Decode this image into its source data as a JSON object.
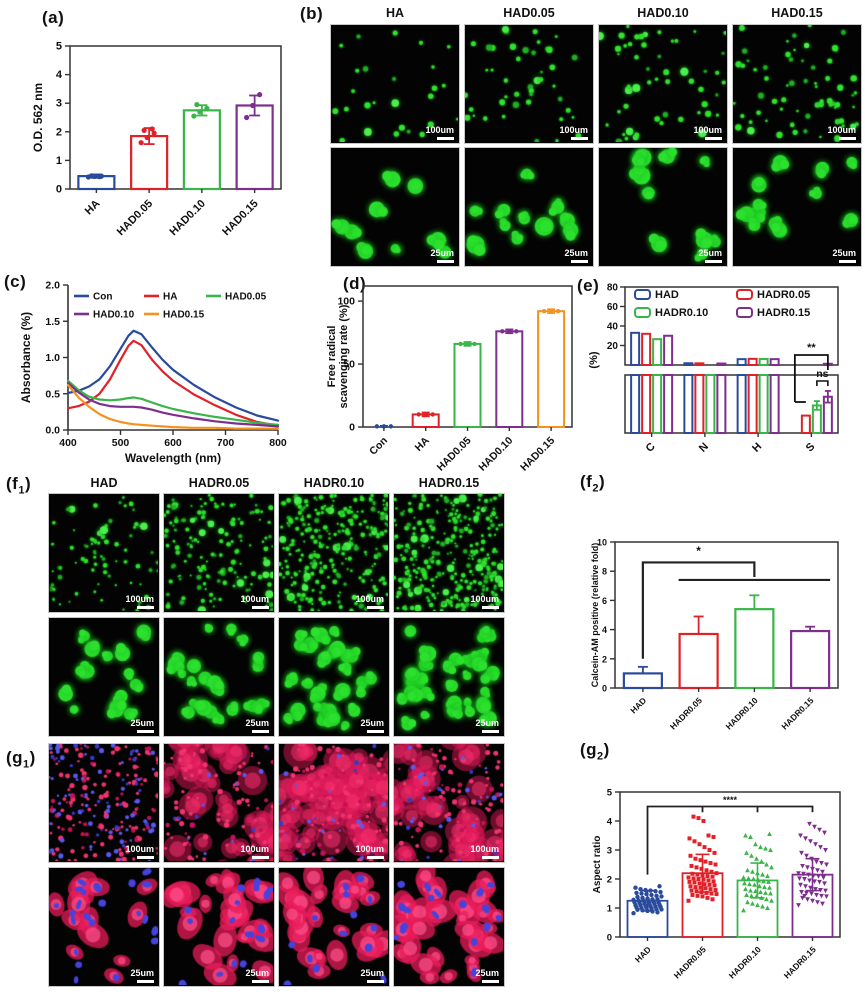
{
  "panels": {
    "a": {
      "label": "(a)"
    },
    "b": {
      "label": "(b)"
    },
    "c": {
      "label": "(c)"
    },
    "d": {
      "label": "(d)"
    },
    "e": {
      "label": "(e)"
    },
    "f1": {
      "prefix": "(f",
      "sub": "1",
      "suffix": ")"
    },
    "f2": {
      "prefix": "(f",
      "sub": "2",
      "suffix": ")"
    },
    "g1": {
      "prefix": "(g",
      "sub": "1",
      "suffix": ")"
    },
    "g2": {
      "prefix": "(g",
      "sub": "2",
      "suffix": ")"
    }
  },
  "colors": {
    "blue": "#2a4b9c",
    "red": "#e02228",
    "green": "#3ab54a",
    "purple": "#7e2f8e",
    "orange": "#f5921f",
    "micro_green": "#2ee32e",
    "micro_red": "#e8356f",
    "micro_blue": "#4746e0"
  },
  "chart_data": [
    {
      "panel": "a",
      "type": "bar",
      "categories": [
        "HA",
        "HAD0.05",
        "HAD0.10",
        "HAD0.15"
      ],
      "values": [
        0.45,
        1.85,
        2.75,
        2.92
      ],
      "errors": [
        0.06,
        0.28,
        0.18,
        0.35
      ],
      "points": [
        [
          0.42,
          0.44,
          0.45,
          0.46,
          0.43
        ],
        [
          1.62,
          1.8,
          1.95,
          2.05,
          2.1
        ],
        [
          2.55,
          2.7,
          2.82,
          2.95
        ],
        [
          2.5,
          2.92,
          3.3
        ]
      ],
      "bar_colors": [
        "#2a4b9c",
        "#e02228",
        "#3ab54a",
        "#7e2f8e"
      ],
      "ylabel": "O.D. 562 nm",
      "ylim": [
        0,
        5
      ],
      "yticks": [
        0,
        1,
        2,
        3,
        4,
        5
      ]
    },
    {
      "panel": "c",
      "type": "line",
      "title": "",
      "xlabel": "Wavelength (nm)",
      "ylabel": "Absorbance (%)",
      "xlim": [
        400,
        800
      ],
      "ylim": [
        0,
        2
      ],
      "xticks": [
        400,
        500,
        600,
        700,
        800
      ],
      "yticks": [
        "0.0",
        "0.5",
        "1.0",
        "1.5",
        "2.0"
      ],
      "x": [
        400,
        420,
        440,
        460,
        480,
        500,
        515,
        525,
        540,
        560,
        580,
        600,
        640,
        680,
        720,
        760,
        800
      ],
      "series": [
        {
          "name": "Con",
          "color": "#2a4b9c",
          "y": [
            0.51,
            0.54,
            0.6,
            0.7,
            0.88,
            1.12,
            1.3,
            1.37,
            1.32,
            1.14,
            0.97,
            0.83,
            0.62,
            0.45,
            0.31,
            0.2,
            0.13
          ]
        },
        {
          "name": "HA",
          "color": "#e02228",
          "y": [
            0.3,
            0.33,
            0.39,
            0.5,
            0.7,
            0.97,
            1.16,
            1.23,
            1.17,
            0.97,
            0.81,
            0.68,
            0.49,
            0.34,
            0.21,
            0.11,
            0.06
          ]
        },
        {
          "name": "HAD0.05",
          "color": "#3ab54a",
          "y": [
            0.68,
            0.55,
            0.46,
            0.42,
            0.41,
            0.42,
            0.44,
            0.45,
            0.43,
            0.38,
            0.33,
            0.29,
            0.23,
            0.18,
            0.14,
            0.1,
            0.07
          ]
        },
        {
          "name": "HAD0.10",
          "color": "#7e2f8e",
          "y": [
            0.65,
            0.52,
            0.42,
            0.36,
            0.33,
            0.32,
            0.32,
            0.32,
            0.31,
            0.28,
            0.24,
            0.21,
            0.16,
            0.12,
            0.09,
            0.07,
            0.05
          ]
        },
        {
          "name": "HAD0.15",
          "color": "#f5921f",
          "y": [
            0.62,
            0.45,
            0.32,
            0.22,
            0.15,
            0.11,
            0.09,
            0.08,
            0.07,
            0.06,
            0.05,
            0.04,
            0.03,
            0.03,
            0.02,
            0.02,
            0.02
          ]
        }
      ],
      "legend_rows": [
        [
          "Con",
          "HA",
          "HAD0.05"
        ],
        [
          "HAD0.10",
          "HAD0.15"
        ]
      ],
      "legend_position": "top-left-inside",
      "grid": false
    },
    {
      "panel": "d",
      "type": "bar",
      "categories": [
        "Con",
        "HA",
        "HAD0.05",
        "HAD0.10",
        "HAD0.15"
      ],
      "values": [
        0.5,
        10,
        66,
        76,
        92
      ],
      "errors": [
        0.4,
        1.5,
        1.5,
        1.5,
        1.5
      ],
      "bar_colors": [
        "#2a4b9c",
        "#e02228",
        "#3ab54a",
        "#7e2f8e",
        "#f5921f"
      ],
      "ylabel_lines": [
        "Free radical",
        "scavenging rate (%)"
      ],
      "ylim": [
        0,
        112
      ],
      "yticks": [
        0,
        50,
        100
      ]
    },
    {
      "panel": "e",
      "type": "grouped-bar-broken-axis",
      "categories": [
        "C",
        "N",
        "H",
        "S"
      ],
      "series": [
        {
          "name": "HAD",
          "color": "#2a4b9c",
          "values": [
            33,
            1.8,
            6.0,
            0
          ]
        },
        {
          "name": "HADR0.05",
          "color": "#e02228",
          "values": [
            32,
            1.7,
            6.3,
            0.6
          ]
        },
        {
          "name": "HADR0.10",
          "color": "#3ab54a",
          "values": [
            26.5,
            0.9,
            6.2,
            0.95
          ]
        },
        {
          "name": "HADR0.15",
          "color": "#7e2f8e",
          "values": [
            30,
            1.5,
            6.0,
            1.25
          ]
        }
      ],
      "s_errors": [
        0,
        0.05,
        0.15,
        0.2
      ],
      "ylabel": "(%)",
      "upper_ylim": [
        0,
        80
      ],
      "upper_yticks": [
        20,
        40,
        60,
        80
      ],
      "lower_ylim": [
        0,
        2
      ],
      "annotations": [
        "**",
        "ns"
      ],
      "legend_position": "top-inside"
    },
    {
      "panel": "f2",
      "type": "bar",
      "categories": [
        "HAD",
        "HADR0.05",
        "HADR0.10",
        "HADR0.15"
      ],
      "values": [
        1.0,
        3.7,
        5.4,
        3.9
      ],
      "errors": [
        0.45,
        1.2,
        0.95,
        0.3
      ],
      "bar_colors": [
        "#2a4b9c",
        "#e02228",
        "#3ab54a",
        "#7e2f8e"
      ],
      "ylabel": "Calcein-AM positive (relative fold)",
      "ylim": [
        0,
        10
      ],
      "yticks": [
        0,
        2,
        4,
        6,
        8,
        10
      ],
      "significance": "*"
    },
    {
      "panel": "g2",
      "type": "scatter-bar",
      "categories": [
        "HAD",
        "HADR0.05",
        "HADR0.10",
        "HADR0.15"
      ],
      "means": [
        1.25,
        2.2,
        1.95,
        2.15
      ],
      "errors": [
        0.35,
        0.65,
        0.6,
        0.55
      ],
      "markers": [
        "circle",
        "square",
        "triangle-up",
        "triangle-down"
      ],
      "colors": [
        "#2a4b9c",
        "#e02228",
        "#3ab54a",
        "#7e2f8e"
      ],
      "points": [
        [
          0.82,
          0.85,
          0.88,
          0.9,
          0.92,
          0.94,
          0.95,
          0.96,
          0.98,
          1.0,
          1.0,
          1.02,
          1.04,
          1.05,
          1.06,
          1.08,
          1.1,
          1.1,
          1.12,
          1.14,
          1.15,
          1.16,
          1.18,
          1.2,
          1.2,
          1.22,
          1.24,
          1.25,
          1.26,
          1.28,
          1.3,
          1.3,
          1.32,
          1.35,
          1.38,
          1.4,
          1.42,
          1.45,
          1.48,
          1.5,
          1.52,
          1.55,
          1.58,
          1.6,
          1.62,
          1.65,
          1.7,
          1.75
        ],
        [
          1.25,
          1.3,
          1.35,
          1.4,
          1.42,
          1.45,
          1.48,
          1.5,
          1.52,
          1.55,
          1.58,
          1.6,
          1.62,
          1.65,
          1.68,
          1.7,
          1.72,
          1.75,
          1.78,
          1.8,
          1.82,
          1.85,
          1.88,
          1.9,
          1.92,
          1.95,
          1.98,
          2.0,
          2.02,
          2.05,
          2.08,
          2.1,
          2.12,
          2.15,
          2.18,
          2.2,
          2.25,
          2.3,
          2.35,
          2.4,
          2.45,
          2.5,
          2.55,
          2.6,
          2.65,
          2.7,
          2.8,
          2.9,
          3.0,
          3.1,
          3.2,
          3.3,
          3.4,
          3.45,
          3.5,
          4.0,
          4.1,
          4.15
        ],
        [
          0.92,
          1.0,
          1.05,
          1.1,
          1.15,
          1.2,
          1.25,
          1.3,
          1.35,
          1.4,
          1.42,
          1.45,
          1.5,
          1.52,
          1.55,
          1.58,
          1.6,
          1.65,
          1.7,
          1.72,
          1.75,
          1.8,
          1.82,
          1.85,
          1.9,
          1.92,
          1.95,
          2.0,
          2.02,
          2.05,
          2.1,
          2.15,
          2.2,
          2.25,
          2.3,
          2.4,
          2.5,
          2.6,
          2.7,
          2.8,
          2.9,
          3.0,
          3.05,
          3.1,
          3.2,
          3.45,
          3.5,
          3.55
        ],
        [
          1.1,
          1.15,
          1.2,
          1.25,
          1.3,
          1.35,
          1.4,
          1.42,
          1.45,
          1.5,
          1.52,
          1.55,
          1.6,
          1.62,
          1.65,
          1.7,
          1.75,
          1.8,
          1.85,
          1.9,
          1.92,
          1.95,
          2.0,
          2.02,
          2.05,
          2.1,
          2.12,
          2.15,
          2.18,
          2.2,
          2.25,
          2.3,
          2.35,
          2.4,
          2.45,
          2.5,
          2.55,
          2.6,
          2.7,
          2.8,
          2.9,
          3.0,
          3.1,
          3.2,
          3.3,
          3.4,
          3.5,
          3.6,
          3.7,
          3.8,
          3.9,
          1.42
        ]
      ],
      "ylabel": "Aspect ratio",
      "ylim": [
        0,
        5
      ],
      "yticks": [
        0,
        1,
        2,
        3,
        4,
        5
      ],
      "significance": "****"
    }
  ],
  "microscopy": {
    "b": {
      "columns": [
        "HA",
        "HAD0.05",
        "HAD0.10",
        "HAD0.15"
      ],
      "rows": [
        {
          "scale": "100um",
          "style": "green-dots",
          "counts": [
            26,
            46,
            52,
            64
          ]
        },
        {
          "scale": "25um",
          "style": "green-blobs",
          "counts": [
            9,
            12,
            10,
            12
          ]
        }
      ]
    },
    "f1": {
      "columns": [
        "HAD",
        "HADR0.05",
        "HADR0.10",
        "HADR0.15"
      ],
      "rows": [
        {
          "scale": "100um",
          "style": "green-dots",
          "counts": [
            80,
            150,
            260,
            300
          ]
        },
        {
          "scale": "25um",
          "style": "green-cells",
          "counts": [
            16,
            22,
            28,
            38
          ]
        }
      ]
    },
    "g1": {
      "rows": [
        {
          "scale": "100um",
          "style": "red-field",
          "patches": [
            0,
            55,
            70,
            60
          ],
          "dots": [
            150,
            90,
            110,
            100
          ],
          "blue": [
            90,
            15,
            25,
            30
          ]
        },
        {
          "scale": "25um",
          "style": "red-cells",
          "cells": [
            14,
            30,
            26,
            34
          ],
          "blue": [
            22,
            16,
            14,
            18
          ]
        }
      ]
    }
  }
}
